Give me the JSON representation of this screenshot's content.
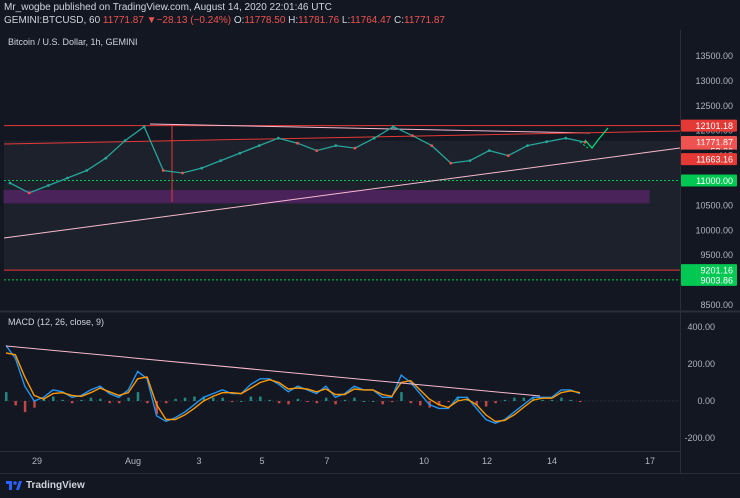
{
  "header": {
    "line1": "Mr_wogbe published on TradingView.com, August 14, 2020 22:01:46 UTC",
    "symbol": "GEMINI:BTCUSD, 60",
    "last": "11771.87",
    "change": "▼−28.13 (−0.24%)",
    "o_label": "O:",
    "o_val": "11778.50",
    "h_label": "H:",
    "h_val": "11781.76",
    "l_label": "L:",
    "l_val": "11764.47",
    "c_label": "C:",
    "c_val": "11771.87"
  },
  "footer": {
    "brand": "TradingView"
  },
  "chart_data": [
    {
      "type": "line",
      "title": "Bitcoin / U.S. Dollar, 1h, GEMINI",
      "ylim": [
        8200,
        13950
      ],
      "y_ticks": [
        "13500.00",
        "13000.00",
        "12500.00",
        "12000.00",
        "11500.00",
        "11000.00",
        "10500.00",
        "10000.00",
        "9500.00",
        "9000.00",
        "8500.00"
      ],
      "x_ticks": [
        "29",
        "Aug",
        "3",
        "5",
        "7",
        "10",
        "12",
        "14",
        "17"
      ],
      "price_tags": [
        {
          "label": "12101.18",
          "value": 12101.18,
          "color": "#e53935"
        },
        {
          "label": "11771.87",
          "value": 11771.87,
          "color": "#ef5350"
        },
        {
          "label": "58:26",
          "value": 11590,
          "color": "#ef5350"
        },
        {
          "label": "115",
          "value": 11500,
          "color": "#131722"
        },
        {
          "label": "11663.16",
          "value": 11430,
          "color": "#e53935"
        },
        {
          "label": "11000.00",
          "value": 11000,
          "color": "#00c853"
        },
        {
          "label": "9201.16",
          "value": 9201.16,
          "color": "#00c853"
        },
        {
          "label": "9003.86",
          "value": 9003.86,
          "color": "#00c853"
        }
      ],
      "price_series": [
        {
          "x": "Jul 28",
          "y": 10950
        },
        {
          "x": "Jul 28 12h",
          "y": 10750
        },
        {
          "x": "Jul 29",
          "y": 10900
        },
        {
          "x": "Jul 30",
          "y": 11050
        },
        {
          "x": "Jul 31",
          "y": 11200
        },
        {
          "x": "Jul 31 12h",
          "y": 11450
        },
        {
          "x": "Aug 1",
          "y": 11800
        },
        {
          "x": "Aug 1 12h",
          "y": 12080
        },
        {
          "x": "Aug 2",
          "y": 11200
        },
        {
          "x": "Aug 2 12h",
          "y": 11150
        },
        {
          "x": "Aug 3",
          "y": 11250
        },
        {
          "x": "Aug 4",
          "y": 11400
        },
        {
          "x": "Aug 5",
          "y": 11550
        },
        {
          "x": "Aug 5 12h",
          "y": 11700
        },
        {
          "x": "Aug 6",
          "y": 11850
        },
        {
          "x": "Aug 7",
          "y": 11750
        },
        {
          "x": "Aug 8",
          "y": 11600
        },
        {
          "x": "Aug 8 12h",
          "y": 11700
        },
        {
          "x": "Aug 9",
          "y": 11650
        },
        {
          "x": "Aug 10",
          "y": 11850
        },
        {
          "x": "Aug 10 6h",
          "y": 12080
        },
        {
          "x": "Aug 10 18h",
          "y": 11900
        },
        {
          "x": "Aug 11",
          "y": 11700
        },
        {
          "x": "Aug 11 12h",
          "y": 11350
        },
        {
          "x": "Aug 12",
          "y": 11400
        },
        {
          "x": "Aug 12 12h",
          "y": 11600
        },
        {
          "x": "Aug 13",
          "y": 11500
        },
        {
          "x": "Aug 13 12h",
          "y": 11700
        },
        {
          "x": "Aug 14",
          "y": 11780
        },
        {
          "x": "Aug 14 12h",
          "y": 11850
        },
        {
          "x": "Aug 14 22h",
          "y": 11772
        }
      ],
      "support_levels": [
        {
          "value": 12101.18,
          "color": "#e53935",
          "style": "solid"
        },
        {
          "value": 11000,
          "color": "#00c853",
          "style": "dotted"
        },
        {
          "value": 9201.16,
          "color": "#e53935",
          "style": "solid"
        },
        {
          "value": 9003.86,
          "color": "#00c853",
          "style": "dotted"
        }
      ],
      "zone": {
        "from": 10550,
        "to": 10800,
        "color": "#9c27b0"
      },
      "grid": false
    },
    {
      "type": "line",
      "title": "MACD (12, 26, close, 9)",
      "ylim": [
        -300,
        450
      ],
      "y_ticks": [
        "400.00",
        "200.00",
        "0.00",
        "-200.00"
      ],
      "series": [
        {
          "color": "#2196f3",
          "values": [
            300,
            230,
            80,
            0,
            20,
            60,
            50,
            20,
            30,
            60,
            80,
            40,
            20,
            60,
            160,
            120,
            -80,
            -110,
            -90,
            -60,
            -20,
            20,
            40,
            60,
            40,
            40,
            90,
            120,
            120,
            90,
            50,
            80,
            60,
            40,
            80,
            20,
            40,
            80,
            60,
            60,
            20,
            20,
            140,
            100,
            40,
            -20,
            -40,
            -40,
            20,
            20,
            -40,
            -100,
            -120,
            -100,
            -60,
            -20,
            20,
            20,
            20,
            60,
            60,
            40
          ]
        },
        {
          "color": "#ff9800",
          "values": [
            260,
            250,
            130,
            30,
            10,
            40,
            45,
            30,
            25,
            45,
            70,
            50,
            30,
            45,
            120,
            130,
            -20,
            -100,
            -100,
            -75,
            -40,
            0,
            25,
            45,
            45,
            40,
            70,
            100,
            115,
            100,
            65,
            70,
            65,
            50,
            65,
            35,
            35,
            65,
            60,
            60,
            35,
            25,
            100,
            110,
            60,
            10,
            -20,
            -35,
            0,
            10,
            -20,
            -75,
            -110,
            -105,
            -75,
            -35,
            5,
            15,
            15,
            45,
            55,
            45
          ]
        }
      ]
    }
  ]
}
